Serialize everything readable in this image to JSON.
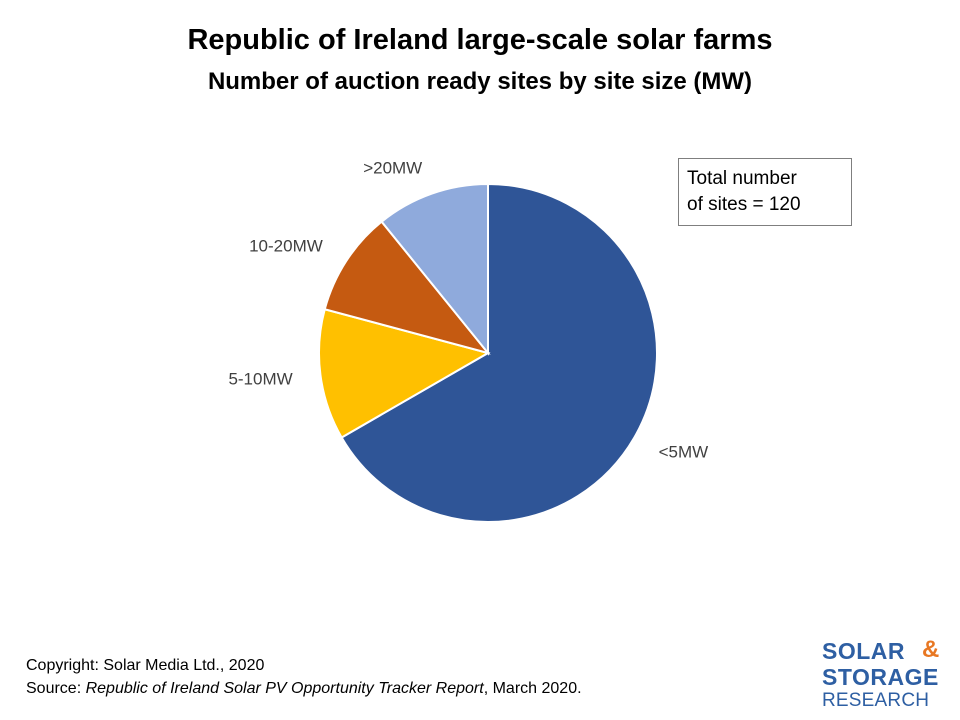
{
  "title": "Republic of Ireland large-scale solar farms",
  "subtitle": "Number of auction ready sites by site size (MW)",
  "annotation": {
    "line1": "Total number",
    "line2": "of sites = 120"
  },
  "footer": {
    "copyright": "Copyright: Solar Media Ltd., 2020",
    "source_prefix": "Source: ",
    "source_title": "Republic of Ireland Solar PV Opportunity Tracker Report",
    "source_suffix": ", March 2020."
  },
  "logo": {
    "solar": "SOLAR",
    "amp": "&",
    "storage": "STORAGE",
    "research": "RESEARCH"
  },
  "chart_data": {
    "type": "pie",
    "title": "Republic of Ireland large-scale solar farms",
    "subtitle": "Number of auction ready sites by site size (MW)",
    "categories": [
      "<5MW",
      "5-10MW",
      "10-20MW",
      ">20MW"
    ],
    "values": [
      80,
      15,
      12,
      13
    ],
    "colors": [
      "#2f5597",
      "#ffc000",
      "#c55a11",
      "#8faadc"
    ],
    "start": "12 o'clock",
    "direction": "clockwise",
    "legend": "none (category labels next to slices)"
  }
}
